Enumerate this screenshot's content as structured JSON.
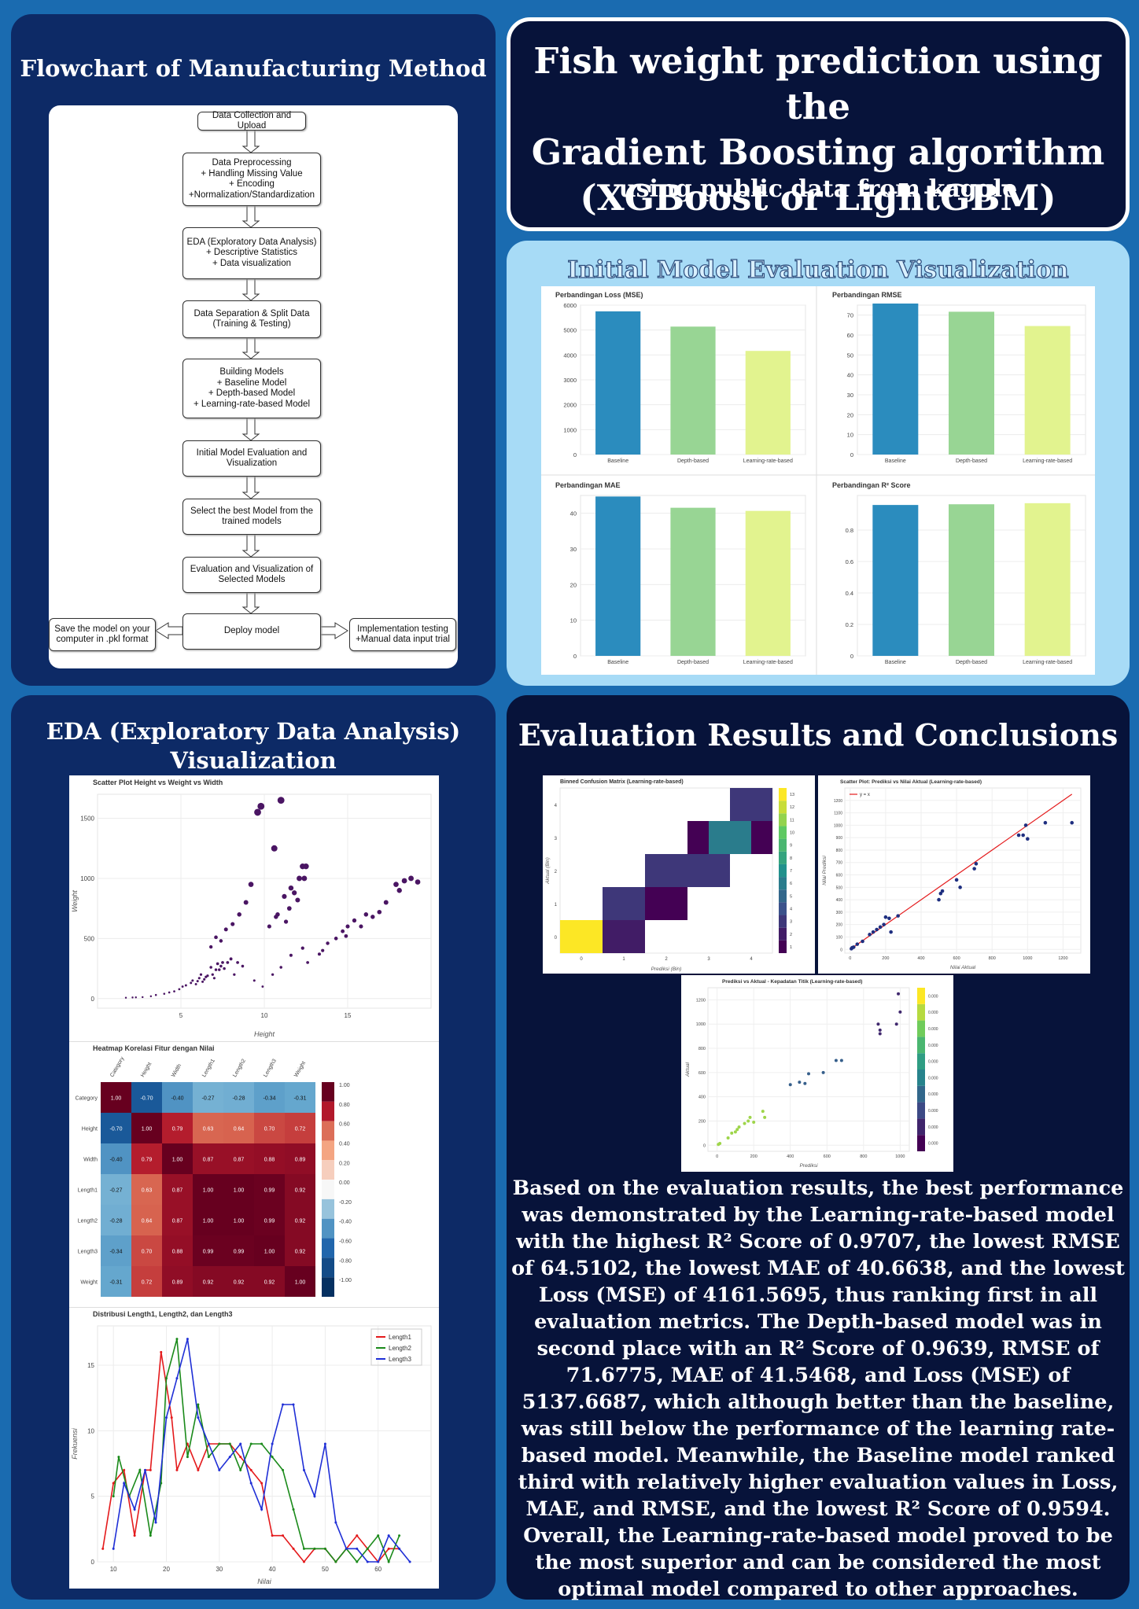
{
  "title": {
    "line1": "Fish weight prediction using the",
    "line2": "Gradient Boosting algorithm",
    "line3": "(XGBoost or LightGBM)",
    "subtitle": "using public data from kaggle"
  },
  "flowchart": {
    "heading": "Flowchart of Manufacturing Method",
    "steps": [
      "Data Collection and Upload",
      "Data Preprocessing\n+ Handling Missing Value\n+ Encoding\n+Normalization/Standardization",
      "EDA (Exploratory Data Analysis)\n+ Descriptive Statistics\n+ Data visualization",
      "Data Separation & Split Data\n(Training & Testing)",
      "Building Models\n+ Baseline Model\n+ Depth-based Model\n+ Learning-rate-based Model",
      "Initial Model Evaluation and\nVisualization",
      "Select the best Model from the\ntrained models",
      "Evaluation and Visualization of\nSelected Models",
      "Deploy model"
    ],
    "side_left": "Save the model on your\ncomputer in .pkl format",
    "side_right": "Implementation testing\n+Manual data input trial"
  },
  "initial_eval": {
    "heading": "Initial Model Evaluation Visualization"
  },
  "eda": {
    "heading_line1": "EDA (Exploratory Data Analysis)",
    "heading_line2": "Visualization"
  },
  "results": {
    "heading": "Evaluation Results and Conclusions",
    "conclusion": "Based on the evaluation results, the best performance was demonstrated by the Learning-rate-based model with the highest R² Score of 0.9707, the lowest RMSE of 64.5102, the lowest MAE of 40.6638, and the lowest Loss (MSE) of 4161.5695, thus ranking first in all evaluation metrics. The Depth-based model was in second place with an R² Score of 0.9639, RMSE of 71.6775, MAE of 41.5468, and Loss (MSE) of 5137.6687, which although better than the baseline, was still below the performance of the learning rate-based model. Meanwhile, the Baseline model ranked third with relatively higher evaluation values in Loss, MAE, and RMSE, and the lowest R² Score of 0.9594. Overall, the Learning-rate-based model proved to be the most superior and can be considered the most optimal model compared to other approaches."
  },
  "colors": {
    "baseline": "#2b8cbe",
    "depth": "#98d594",
    "lr": "#e2f38f",
    "bg": "#1a6bb0",
    "panel": "#0d2a66"
  },
  "chart_data": [
    {
      "type": "bar",
      "title": "Perbandingan Loss (MSE)",
      "categories": [
        "Baseline",
        "Depth-based",
        "Learning-rate-based"
      ],
      "values": [
        5750,
        5137.6687,
        4161.5695
      ],
      "ylim": [
        0,
        6000
      ],
      "yticks": [
        0,
        1000,
        2000,
        3000,
        4000,
        5000,
        6000
      ]
    },
    {
      "type": "bar",
      "title": "Perbandingan RMSE",
      "categories": [
        "Baseline",
        "Depth-based",
        "Learning-rate-based"
      ],
      "values": [
        75.8,
        71.6775,
        64.5102
      ],
      "ylim": [
        0,
        75
      ],
      "yticks": [
        0,
        10,
        20,
        30,
        40,
        50,
        60,
        70
      ]
    },
    {
      "type": "bar",
      "title": "Perbandingan MAE",
      "categories": [
        "Baseline",
        "Depth-based",
        "Learning-rate-based"
      ],
      "values": [
        44.7,
        41.5468,
        40.6638
      ],
      "ylim": [
        0,
        45
      ],
      "yticks": [
        0,
        10,
        20,
        30,
        40
      ]
    },
    {
      "type": "bar",
      "title": "Perbandingan R² Score",
      "categories": [
        "Baseline",
        "Depth-based",
        "Learning-rate-based"
      ],
      "values": [
        0.9594,
        0.9639,
        0.9707
      ],
      "ylim": [
        0,
        1.02
      ],
      "yticks": [
        0,
        0.2,
        0.4,
        0.6,
        0.8
      ]
    },
    {
      "type": "scatter",
      "title": "Scatter Plot Height vs Weight vs Width",
      "xlabel": "Height",
      "ylabel": "Weight",
      "xlim": [
        0,
        20
      ],
      "ylim": [
        -80,
        1700
      ],
      "xticks": [
        5,
        10,
        15
      ],
      "yticks": [
        0,
        500,
        1000,
        1500
      ],
      "points": [
        [
          1.7,
          7
        ],
        [
          2.1,
          9
        ],
        [
          2.3,
          10
        ],
        [
          2.7,
          12
        ],
        [
          3.2,
          19
        ],
        [
          3.5,
          30
        ],
        [
          4,
          40
        ],
        [
          4.3,
          51
        ],
        [
          4.6,
          60
        ],
        [
          4.9,
          78
        ],
        [
          5.1,
          100
        ],
        [
          5.3,
          110
        ],
        [
          5.6,
          130
        ],
        [
          5.7,
          150
        ],
        [
          5.9,
          120
        ],
        [
          6,
          145
        ],
        [
          6.1,
          170
        ],
        [
          6.2,
          200
        ],
        [
          6.3,
          140
        ],
        [
          6.4,
          160
        ],
        [
          6.5,
          180
        ],
        [
          6.6,
          190
        ],
        [
          6.8,
          260
        ],
        [
          6.9,
          200
        ],
        [
          7,
          170
        ],
        [
          7.1,
          240
        ],
        [
          7.2,
          290
        ],
        [
          7.4,
          270
        ],
        [
          7.5,
          300
        ],
        [
          7.3,
          240
        ],
        [
          7.6,
          250
        ],
        [
          7.8,
          300
        ],
        [
          8,
          330
        ],
        [
          8.2,
          200
        ],
        [
          8.4,
          300
        ],
        [
          8.7,
          270
        ],
        [
          6.8,
          430
        ],
        [
          7.1,
          510
        ],
        [
          7.4,
          480
        ],
        [
          7.7,
          575
        ],
        [
          8.1,
          620
        ],
        [
          8.5,
          700
        ],
        [
          8.9,
          800
        ],
        [
          9.2,
          950
        ],
        [
          9.6,
          1550
        ],
        [
          9.8,
          1600
        ],
        [
          10.6,
          1250
        ],
        [
          11,
          1650
        ],
        [
          10.8,
          700
        ],
        [
          11.2,
          850
        ],
        [
          11.6,
          920
        ],
        [
          11.8,
          880
        ],
        [
          12.1,
          1000
        ],
        [
          12.4,
          1000
        ],
        [
          12.5,
          1100
        ],
        [
          12.3,
          1100
        ],
        [
          11.5,
          750
        ],
        [
          12,
          820
        ],
        [
          10.3,
          600
        ],
        [
          10.7,
          680
        ],
        [
          11.3,
          640
        ],
        [
          9.4,
          150
        ],
        [
          9.9,
          100
        ],
        [
          10.5,
          200
        ],
        [
          11,
          260
        ],
        [
          11.6,
          360
        ],
        [
          12.3,
          420
        ],
        [
          12.6,
          300
        ],
        [
          13.3,
          370
        ],
        [
          13.8,
          460
        ],
        [
          14.3,
          500
        ],
        [
          14.7,
          560
        ],
        [
          15,
          600
        ],
        [
          15.4,
          650
        ],
        [
          15.8,
          600
        ],
        [
          16.1,
          700
        ],
        [
          16.5,
          680
        ],
        [
          16.9,
          720
        ],
        [
          17.3,
          800
        ],
        [
          17.9,
          950
        ],
        [
          18.4,
          980
        ],
        [
          18.8,
          1000
        ],
        [
          19.2,
          970
        ],
        [
          18.1,
          900
        ],
        [
          13.5,
          400
        ],
        [
          14.9,
          520
        ]
      ]
    },
    {
      "type": "heatmap",
      "title": "Heatmap Korelasi Fitur dengan Nilai",
      "labels": [
        "Category",
        "Height",
        "Width",
        "Length1",
        "Length2",
        "Length3",
        "Weight"
      ],
      "matrix": [
        [
          1.0,
          -0.7,
          -0.4,
          -0.27,
          -0.28,
          -0.34,
          -0.31
        ],
        [
          -0.7,
          1.0,
          0.79,
          0.63,
          0.64,
          0.7,
          0.72
        ],
        [
          -0.4,
          0.79,
          1.0,
          0.87,
          0.87,
          0.88,
          0.89
        ],
        [
          -0.27,
          0.63,
          0.87,
          1.0,
          1.0,
          0.99,
          0.92
        ],
        [
          -0.28,
          0.64,
          0.87,
          1.0,
          1.0,
          0.99,
          0.92
        ],
        [
          -0.34,
          0.7,
          0.88,
          0.99,
          0.99,
          1.0,
          0.92
        ],
        [
          -0.31,
          0.72,
          0.89,
          0.92,
          0.92,
          0.92,
          1.0
        ]
      ],
      "colorbar": [
        1.0,
        0.8,
        0.6,
        0.4,
        0.2,
        0.0,
        -0.2,
        -0.4,
        -0.6,
        -0.8,
        -1.0
      ]
    },
    {
      "type": "line",
      "title": "Distribusi Length1, Length2, dan Length3",
      "xlabel": "Nilai",
      "ylabel": "Frekuensi",
      "xlim": [
        7,
        70
      ],
      "ylim": [
        0,
        18
      ],
      "xticks": [
        10,
        20,
        30,
        40,
        50,
        60
      ],
      "yticks": [
        0,
        5,
        10,
        15
      ],
      "series": [
        {
          "name": "Length1",
          "color": "#e41a1c",
          "x": [
            8,
            10,
            12,
            14,
            16,
            17,
            19,
            21,
            22,
            24,
            26,
            28,
            30,
            32,
            34,
            36,
            38,
            40,
            42,
            44,
            46,
            48,
            50,
            52,
            54,
            56,
            58,
            60,
            62,
            64
          ],
          "y": [
            1,
            6,
            7,
            2,
            7,
            7,
            16,
            11,
            7,
            9,
            7,
            9,
            9,
            9,
            8,
            7,
            6,
            2,
            2,
            1,
            0,
            1,
            1,
            0,
            1,
            2,
            1,
            0,
            1,
            1
          ]
        },
        {
          "name": "Length2",
          "color": "#1a8a1a",
          "x": [
            10,
            11,
            13,
            15,
            17,
            19,
            20,
            22,
            24,
            26,
            28,
            30,
            32,
            34,
            36,
            38,
            40,
            42,
            44,
            46,
            48,
            50,
            52,
            54,
            56,
            58,
            60,
            62,
            64
          ],
          "y": [
            5,
            8,
            5,
            7,
            2,
            6,
            14,
            17,
            8,
            12,
            8,
            9,
            9,
            7,
            9,
            9,
            8,
            7,
            4,
            1,
            1,
            1,
            0,
            1,
            0,
            1,
            2,
            0,
            2
          ]
        },
        {
          "name": "Length3",
          "color": "#1f2fd6",
          "x": [
            10,
            12,
            14,
            16,
            18,
            20,
            22,
            24,
            26,
            28,
            30,
            32,
            34,
            36,
            38,
            40,
            42,
            44,
            46,
            48,
            50,
            52,
            54,
            56,
            58,
            60,
            62,
            64,
            66
          ],
          "y": [
            1,
            6,
            4,
            7,
            3,
            11,
            14,
            17,
            11,
            9,
            7,
            8,
            9,
            6,
            4,
            9,
            12,
            12,
            7,
            5,
            9,
            3,
            1,
            1,
            0,
            0,
            2,
            1,
            0
          ]
        }
      ]
    },
    {
      "type": "heatmap",
      "title": "Binned Confusion Matrix (Learning-rate-based)",
      "xlabel": "Prediksi (Bin)",
      "ylabel": "Aktual (Bin)",
      "xticks": [
        0,
        1,
        2,
        3,
        4
      ],
      "yticks": [
        0,
        1,
        2,
        3,
        4
      ],
      "colorbar": [
        1,
        2,
        3,
        4,
        5,
        6,
        7,
        8,
        9,
        10,
        11,
        12,
        13
      ],
      "cells": [
        [
          0,
          0,
          13
        ],
        [
          0,
          1,
          2
        ],
        [
          1,
          1,
          3
        ],
        [
          1,
          2,
          1
        ],
        [
          2,
          2,
          3
        ],
        [
          2,
          3,
          3
        ],
        [
          3,
          3,
          1
        ],
        [
          3,
          4,
          1
        ],
        [
          4,
          4,
          3
        ],
        [
          3,
          3.5,
          6
        ]
      ]
    },
    {
      "type": "scatter",
      "title": "Scatter Plot: Prediksi vs Nilai Aktual (Learning-rate-based)",
      "xlabel": "Nilai Aktual",
      "ylabel": "Nilai Prediksi",
      "legend": "y = x",
      "xlim": [
        -30,
        1300
      ],
      "ylim": [
        -30,
        1300
      ],
      "xticks": [
        0,
        200,
        400,
        600,
        800,
        1000,
        1200
      ],
      "yticks": [
        0,
        100,
        200,
        300,
        400,
        500,
        600,
        700,
        800,
        900,
        1000,
        1100,
        1200
      ],
      "points": [
        [
          7,
          6
        ],
        [
          12,
          14
        ],
        [
          20,
          18
        ],
        [
          40,
          42
        ],
        [
          70,
          65
        ],
        [
          110,
          120
        ],
        [
          130,
          140
        ],
        [
          150,
          160
        ],
        [
          170,
          180
        ],
        [
          190,
          200
        ],
        [
          200,
          260
        ],
        [
          220,
          250
        ],
        [
          230,
          140
        ],
        [
          270,
          270
        ],
        [
          500,
          400
        ],
        [
          510,
          450
        ],
        [
          520,
          470
        ],
        [
          600,
          560
        ],
        [
          620,
          500
        ],
        [
          700,
          650
        ],
        [
          710,
          690
        ],
        [
          950,
          920
        ],
        [
          975,
          920
        ],
        [
          990,
          1000
        ],
        [
          1000,
          890
        ],
        [
          1100,
          1020
        ],
        [
          1250,
          1020
        ]
      ]
    },
    {
      "type": "scatter",
      "title": "Prediksi vs Aktual - Kepadatan Titik (Learning-rate-based)",
      "xlabel": "Prediksi",
      "ylabel": "Aktual",
      "xlim": [
        -50,
        1050
      ],
      "ylim": [
        -50,
        1300
      ],
      "xticks": [
        0,
        200,
        400,
        600,
        800,
        1000
      ],
      "yticks": [
        0,
        200,
        400,
        600,
        800,
        1000,
        1200
      ],
      "colorbar": [
        "0.000",
        "0.000",
        "0.000",
        "0.000",
        "0.000",
        "0.000",
        "0.000",
        "0.000",
        "0.000",
        "0.000"
      ],
      "points": [
        [
          7,
          7
        ],
        [
          15,
          15
        ],
        [
          60,
          60
        ],
        [
          80,
          100
        ],
        [
          100,
          110
        ],
        [
          110,
          130
        ],
        [
          120,
          150
        ],
        [
          150,
          180
        ],
        [
          170,
          200
        ],
        [
          180,
          230
        ],
        [
          200,
          190
        ],
        [
          250,
          280
        ],
        [
          260,
          230
        ],
        [
          400,
          500
        ],
        [
          450,
          520
        ],
        [
          480,
          510
        ],
        [
          500,
          590
        ],
        [
          580,
          600
        ],
        [
          650,
          700
        ],
        [
          680,
          700
        ],
        [
          880,
          1000
        ],
        [
          890,
          950
        ],
        [
          890,
          920
        ],
        [
          980,
          1000
        ],
        [
          990,
          1250
        ],
        [
          1000,
          1100
        ]
      ]
    }
  ]
}
